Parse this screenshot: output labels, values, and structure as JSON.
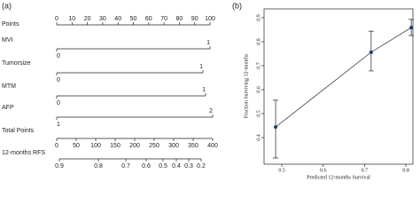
{
  "panel_labels": [
    "(a)",
    "(b)"
  ],
  "nomogram": {
    "rows": [
      {
        "label": "Points",
        "ticks": [
          0,
          10,
          20,
          30,
          40,
          50,
          60,
          70,
          80,
          90,
          100
        ]
      },
      {
        "label": "MVI",
        "ticks": [
          0,
          1
        ]
      },
      {
        "label": "Tumorsize",
        "ticks": [
          0,
          1
        ]
      },
      {
        "label": "MTM",
        "ticks": [
          0,
          1
        ]
      },
      {
        "label": "AFP",
        "ticks": [
          1,
          2
        ]
      },
      {
        "label": "Total Points",
        "ticks": [
          0,
          50,
          100,
          150,
          200,
          250,
          300,
          350,
          400
        ]
      },
      {
        "label": "12-months RFS",
        "ticks": [
          0.9,
          0.8,
          0.7,
          0.6,
          0.5,
          0.4,
          0.3,
          0.2
        ]
      }
    ]
  },
  "chart_data": {
    "type": "line",
    "x_label": "Predicted 12-months Survival",
    "y_label": "Fraction Surviving 12-months",
    "x": [
      0.485,
      0.716,
      0.813
    ],
    "series": [
      {
        "color": "#1f3a7a",
        "values": [
          0.444,
          0.756,
          0.859
        ],
        "lower": [
          0.315,
          0.678,
          0.826
        ],
        "upper": [
          0.556,
          0.844,
          0.893
        ]
      }
    ],
    "xlim": [
      0.457,
      0.817
    ],
    "ylim": [
      0.289,
      0.937
    ],
    "xticks": [
      0.5,
      0.6,
      0.7,
      0.8
    ],
    "yticks": [
      0.4,
      0.5,
      0.6,
      0.7,
      0.8,
      0.9
    ]
  }
}
